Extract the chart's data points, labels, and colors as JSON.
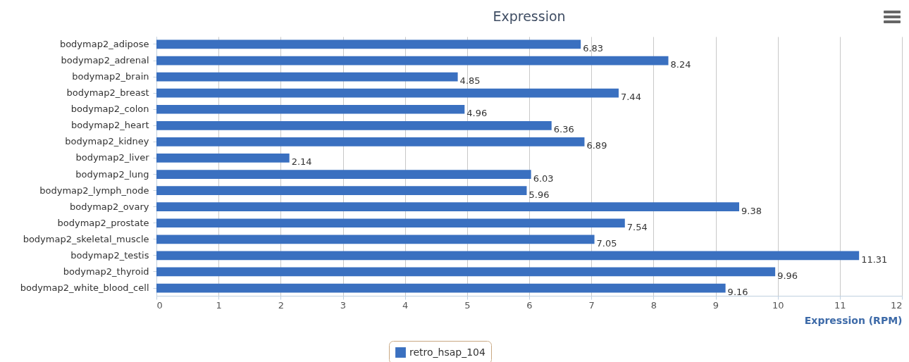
{
  "chart_data": {
    "type": "bar",
    "orientation": "horizontal",
    "title": "Expression",
    "xlabel": "Expression (RPM)",
    "categories": [
      "bodymap2_adipose",
      "bodymap2_adrenal",
      "bodymap2_brain",
      "bodymap2_breast",
      "bodymap2_colon",
      "bodymap2_heart",
      "bodymap2_kidney",
      "bodymap2_liver",
      "bodymap2_lung",
      "bodymap2_lymph_node",
      "bodymap2_ovary",
      "bodymap2_prostate",
      "bodymap2_skeletal_muscle",
      "bodymap2_testis",
      "bodymap2_thyroid",
      "bodymap2_white_blood_cell"
    ],
    "series": [
      {
        "name": "retro_hsap_104",
        "color": "#3a70c0",
        "values": [
          6.83,
          8.24,
          4.85,
          7.44,
          4.96,
          6.36,
          6.89,
          2.14,
          6.03,
          5.96,
          9.38,
          7.54,
          7.05,
          11.31,
          9.96,
          9.16
        ]
      }
    ],
    "xlim": [
      0,
      12
    ],
    "xticks": [
      0,
      1,
      2,
      3,
      4,
      5,
      6,
      7,
      8,
      9,
      10,
      11,
      12
    ],
    "grid": "x",
    "legend": "bottom",
    "data_labels": true
  }
}
